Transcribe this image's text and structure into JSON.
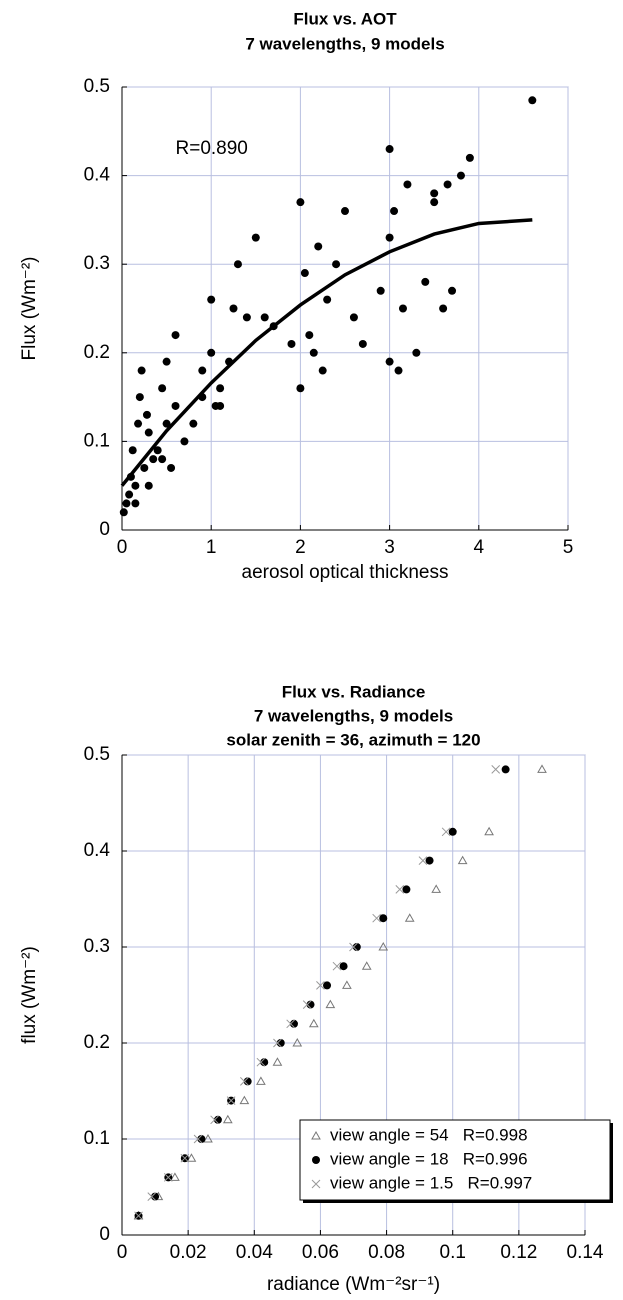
{
  "chart_data": [
    {
      "type": "scatter",
      "title": "Flux vs. AOT",
      "subtitle": [
        "7 wavelengths, 9 models"
      ],
      "xlabel": "aerosol optical thickness",
      "ylabel": "Flux (Wm⁻²)",
      "annotation": "R=0.890",
      "xlim": [
        0,
        5
      ],
      "ylim": [
        0,
        0.5
      ],
      "xticks": [
        0,
        1,
        2,
        3,
        4,
        5
      ],
      "yticks": [
        0,
        0.1,
        0.2,
        0.3,
        0.4,
        0.5
      ],
      "grid": true,
      "series": [
        {
          "marker": "circle",
          "color": "#000000",
          "x": [
            0.02,
            0.05,
            0.08,
            0.1,
            0.12,
            0.15,
            0.18,
            0.2,
            0.22,
            0.25,
            0.28,
            0.3,
            0.35,
            0.4,
            0.45,
            0.5,
            0.5,
            0.55,
            0.6,
            0.6,
            0.7,
            0.8,
            0.9,
            1.0,
            1.0,
            1.05,
            1.1,
            1.2,
            1.25,
            1.3,
            1.4,
            1.5,
            1.6,
            1.7,
            1.9,
            2.0,
            2.0,
            2.05,
            2.1,
            2.15,
            2.2,
            2.25,
            2.3,
            2.4,
            2.5,
            2.6,
            2.7,
            2.9,
            3.0,
            3.0,
            3.0,
            3.05,
            3.1,
            3.15,
            3.2,
            3.3,
            3.4,
            3.5,
            3.5,
            3.6,
            3.65,
            3.7,
            3.8,
            3.9,
            4.6,
            0.15,
            0.3,
            0.45,
            0.9,
            1.1
          ],
          "values": [
            0.02,
            0.03,
            0.04,
            0.06,
            0.09,
            0.05,
            0.12,
            0.15,
            0.18,
            0.07,
            0.13,
            0.11,
            0.08,
            0.09,
            0.16,
            0.12,
            0.19,
            0.07,
            0.22,
            0.14,
            0.1,
            0.12,
            0.18,
            0.26,
            0.2,
            0.14,
            0.16,
            0.19,
            0.25,
            0.3,
            0.24,
            0.33,
            0.24,
            0.23,
            0.21,
            0.37,
            0.16,
            0.29,
            0.22,
            0.2,
            0.32,
            0.18,
            0.26,
            0.3,
            0.36,
            0.24,
            0.21,
            0.27,
            0.43,
            0.19,
            0.33,
            0.36,
            0.18,
            0.25,
            0.39,
            0.2,
            0.28,
            0.38,
            0.37,
            0.25,
            0.39,
            0.27,
            0.4,
            0.42,
            0.485,
            0.03,
            0.05,
            0.08,
            0.15,
            0.14
          ]
        },
        {
          "marker": "line",
          "color": "#000000",
          "x": [
            0,
            0.5,
            1,
            1.5,
            2,
            2.5,
            3,
            3.5,
            4,
            4.6
          ],
          "values": [
            0.05,
            0.112,
            0.166,
            0.214,
            0.254,
            0.288,
            0.314,
            0.334,
            0.346,
            0.35
          ]
        }
      ]
    },
    {
      "type": "scatter",
      "title": "Flux vs. Radiance",
      "subtitle": [
        "7 wavelengths, 9 models",
        "solar zenith = 36, azimuth = 120"
      ],
      "xlabel": "radiance (Wm⁻²sr⁻¹)",
      "ylabel": "flux (Wm⁻²)",
      "xlim": [
        0,
        0.14
      ],
      "ylim": [
        0,
        0.5
      ],
      "xticks": [
        0,
        0.02,
        0.04,
        0.06,
        0.08,
        0.1,
        0.12,
        0.14
      ],
      "yticks": [
        0,
        0.1,
        0.2,
        0.3,
        0.4,
        0.5
      ],
      "grid": true,
      "legend": "lower right",
      "series": [
        {
          "name": "view angle = 54   R=0.998",
          "marker": "triangle",
          "color": "#777777",
          "x": [
            0.005,
            0.011,
            0.016,
            0.021,
            0.026,
            0.032,
            0.037,
            0.042,
            0.047,
            0.053,
            0.058,
            0.063,
            0.068,
            0.074,
            0.079,
            0.087,
            0.095,
            0.103,
            0.111,
            0.127
          ],
          "values": [
            0.02,
            0.04,
            0.06,
            0.08,
            0.1,
            0.12,
            0.14,
            0.16,
            0.18,
            0.2,
            0.22,
            0.24,
            0.26,
            0.28,
            0.3,
            0.33,
            0.36,
            0.39,
            0.42,
            0.485
          ]
        },
        {
          "name": "view angle = 18   R=0.996",
          "marker": "circle",
          "color": "#000000",
          "x": [
            0.005,
            0.01,
            0.014,
            0.019,
            0.024,
            0.029,
            0.033,
            0.038,
            0.043,
            0.048,
            0.052,
            0.057,
            0.062,
            0.067,
            0.071,
            0.079,
            0.086,
            0.093,
            0.1,
            0.116
          ],
          "values": [
            0.02,
            0.04,
            0.06,
            0.08,
            0.1,
            0.12,
            0.14,
            0.16,
            0.18,
            0.2,
            0.22,
            0.24,
            0.26,
            0.28,
            0.3,
            0.33,
            0.36,
            0.39,
            0.42,
            0.485
          ]
        },
        {
          "name": "view angle = 1.5   R=0.997",
          "marker": "x",
          "color": "#999999",
          "x": [
            0.005,
            0.009,
            0.014,
            0.019,
            0.023,
            0.028,
            0.033,
            0.037,
            0.042,
            0.047,
            0.051,
            0.056,
            0.06,
            0.065,
            0.07,
            0.077,
            0.084,
            0.091,
            0.098,
            0.113
          ],
          "values": [
            0.02,
            0.04,
            0.06,
            0.08,
            0.1,
            0.12,
            0.14,
            0.16,
            0.18,
            0.2,
            0.22,
            0.24,
            0.26,
            0.28,
            0.3,
            0.33,
            0.36,
            0.39,
            0.42,
            0.485
          ]
        }
      ]
    }
  ]
}
